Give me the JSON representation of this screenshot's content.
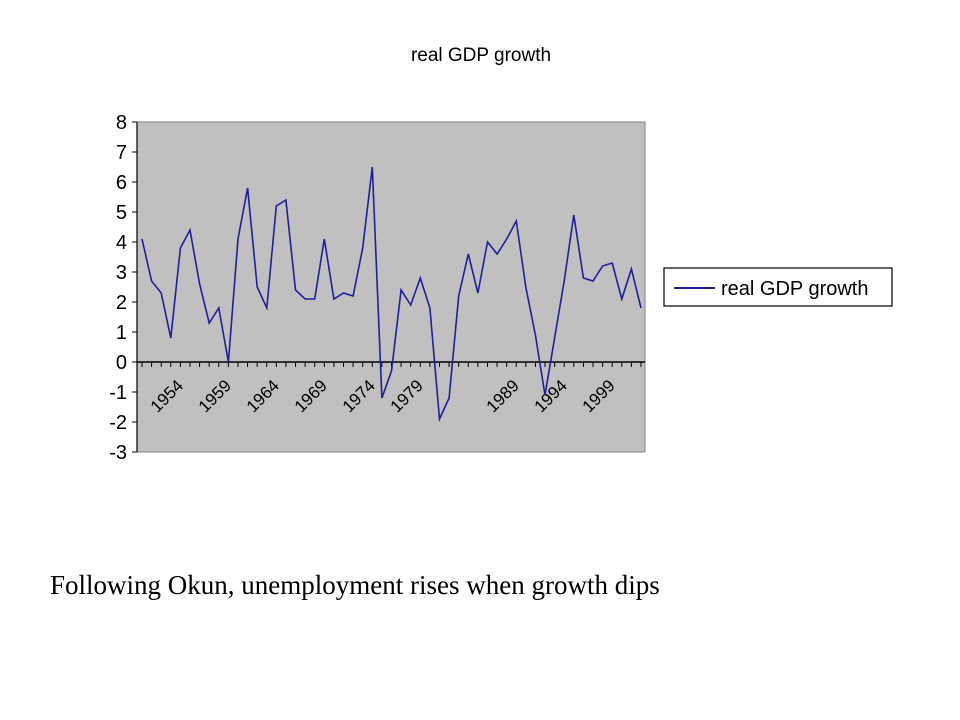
{
  "caption": "Following Okun, unemployment rises when growth dips",
  "chart_data": {
    "type": "line",
    "title": "real GDP growth",
    "xlabel": "",
    "ylabel": "",
    "ylim": [
      -3,
      8
    ],
    "yticks": [
      8,
      7,
      6,
      5,
      4,
      3,
      2,
      1,
      0,
      -1,
      -2,
      -3
    ],
    "x": [
      1951,
      1952,
      1953,
      1954,
      1955,
      1956,
      1957,
      1958,
      1959,
      1960,
      1961,
      1962,
      1963,
      1964,
      1965,
      1966,
      1967,
      1968,
      1969,
      1970,
      1971,
      1972,
      1973,
      1974,
      1975,
      1976,
      1977,
      1978,
      1979,
      1980,
      1981,
      1982,
      1983,
      1984,
      1985,
      1986,
      1987,
      1988,
      1989,
      1990,
      1991,
      1992,
      1993,
      1994,
      1995,
      1996,
      1997,
      1998,
      1999,
      2000,
      2001,
      2002,
      2003
    ],
    "xtick_labels": [
      "1954",
      "1959",
      "1964",
      "1969",
      "1974",
      "1979",
      "1989",
      "1994",
      "1999"
    ],
    "grid": false,
    "legend": "right",
    "series_color": "#1f1f9b",
    "plot_background": "#c0c0c0",
    "series": [
      {
        "name": "real GDP growth",
        "values": [
          4.1,
          2.7,
          2.3,
          0.8,
          3.8,
          4.4,
          2.6,
          1.3,
          1.8,
          0.0,
          4.1,
          5.8,
          2.5,
          1.8,
          5.2,
          5.4,
          2.4,
          2.1,
          2.1,
          4.1,
          2.1,
          2.3,
          2.2,
          3.8,
          6.5,
          -1.2,
          -0.3,
          2.4,
          1.9,
          2.8,
          1.8,
          -1.9,
          -1.2,
          2.2,
          3.6,
          2.3,
          4.0,
          3.6,
          4.1,
          4.7,
          2.5,
          0.9,
          -1.1,
          0.8,
          2.7,
          4.9,
          2.8,
          2.7,
          3.2,
          3.3,
          2.1,
          3.1,
          1.8
        ]
      }
    ]
  }
}
